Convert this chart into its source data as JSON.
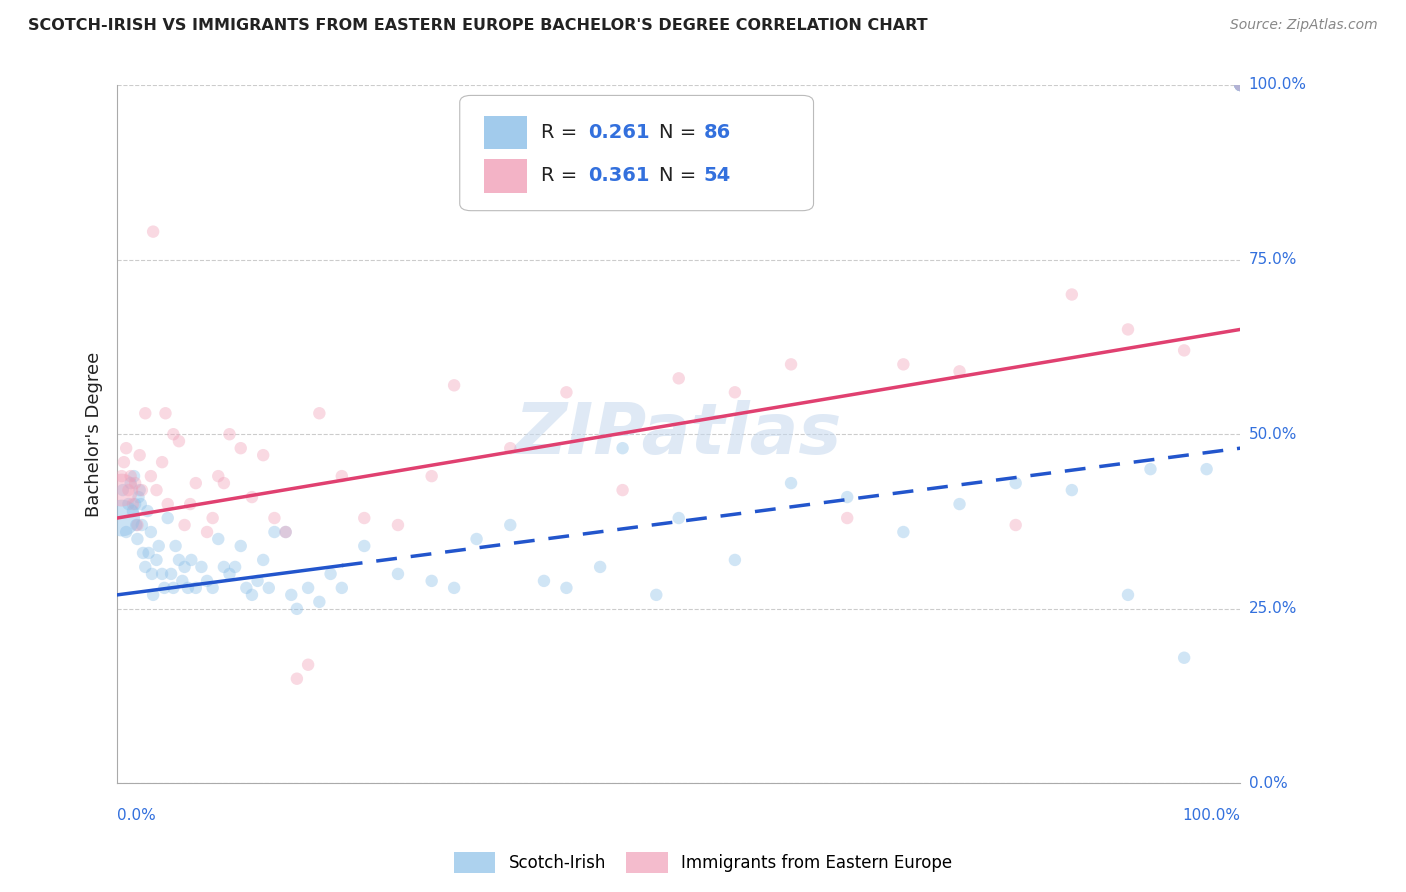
{
  "title": "SCOTCH-IRISH VS IMMIGRANTS FROM EASTERN EUROPE BACHELOR'S DEGREE CORRELATION CHART",
  "source": "Source: ZipAtlas.com",
  "ylabel": "Bachelor's Degree",
  "ytick_values": [
    0,
    25,
    50,
    75,
    100
  ],
  "ytick_labels": [
    "0.0%",
    "25.0%",
    "50.0%",
    "75.0%",
    "100.0%"
  ],
  "xlim": [
    0,
    100
  ],
  "ylim": [
    0,
    100
  ],
  "watermark": "ZIPatlas",
  "legend1_R": "0.261",
  "legend1_N": "86",
  "legend2_R": "0.361",
  "legend2_N": "54",
  "series1_label": "Scotch-Irish",
  "series2_label": "Immigrants from Eastern Europe",
  "series1_color": "#8BBFE8",
  "series2_color": "#F0A0B8",
  "series1_line_color": "#2255CC",
  "series2_line_color": "#E04070",
  "text_color": "#222222",
  "R_N_color": "#3370DD",
  "axis_label_color": "#3370DD",
  "grid_color": "#CCCCCC",
  "background_color": "#FFFFFF",
  "series1_x": [
    0.5,
    0.8,
    1.0,
    1.2,
    1.4,
    1.5,
    1.6,
    1.7,
    1.8,
    1.9,
    2.0,
    2.1,
    2.2,
    2.3,
    2.5,
    2.7,
    2.8,
    3.0,
    3.1,
    3.2,
    3.5,
    3.7,
    4.0,
    4.2,
    4.5,
    4.8,
    5.0,
    5.2,
    5.5,
    5.8,
    6.0,
    6.3,
    6.6,
    7.0,
    7.5,
    8.0,
    8.5,
    9.0,
    9.5,
    10.0,
    10.5,
    11.0,
    11.5,
    12.0,
    12.5,
    13.0,
    13.5,
    14.0,
    15.0,
    15.5,
    16.0,
    17.0,
    18.0,
    19.0,
    20.0,
    22.0,
    25.0,
    28.0,
    30.0,
    32.0,
    35.0,
    38.0,
    40.0,
    43.0,
    45.0,
    48.0,
    50.0,
    55.0,
    60.0,
    65.0,
    70.0,
    75.0,
    80.0,
    85.0,
    90.0,
    92.0,
    95.0,
    97.0,
    100.0,
    100.0,
    100.0,
    100.0,
    100.0,
    100.0,
    100.0,
    100.0
  ],
  "series1_y": [
    42,
    36,
    40,
    43,
    39,
    44,
    40,
    37,
    35,
    41,
    42,
    40,
    37,
    33,
    31,
    39,
    33,
    36,
    30,
    27,
    32,
    34,
    30,
    28,
    38,
    30,
    28,
    34,
    32,
    29,
    31,
    28,
    32,
    28,
    31,
    29,
    28,
    35,
    31,
    30,
    31,
    34,
    28,
    27,
    29,
    32,
    28,
    36,
    36,
    27,
    25,
    28,
    26,
    30,
    28,
    34,
    30,
    29,
    28,
    35,
    37,
    29,
    28,
    31,
    48,
    27,
    38,
    32,
    43,
    41,
    36,
    40,
    43,
    42,
    27,
    45,
    18,
    45,
    100,
    100,
    100,
    100,
    100,
    100,
    100,
    100
  ],
  "series2_x": [
    0.4,
    0.6,
    0.8,
    1.0,
    1.2,
    1.4,
    1.6,
    1.8,
    2.0,
    2.2,
    2.5,
    3.0,
    3.5,
    4.0,
    4.5,
    5.0,
    5.5,
    6.0,
    6.5,
    7.0,
    8.0,
    9.0,
    10.0,
    11.0,
    12.0,
    13.0,
    14.0,
    15.0,
    16.0,
    17.0,
    18.0,
    20.0,
    22.0,
    25.0,
    28.0,
    30.0,
    35.0,
    40.0,
    45.0,
    50.0,
    55.0,
    60.0,
    65.0,
    70.0,
    75.0,
    80.0,
    85.0,
    90.0,
    95.0,
    100.0,
    8.5,
    9.5,
    3.2,
    4.3
  ],
  "series2_y": [
    44,
    46,
    48,
    42,
    44,
    40,
    43,
    37,
    47,
    42,
    53,
    44,
    42,
    46,
    40,
    50,
    49,
    37,
    40,
    43,
    36,
    44,
    50,
    48,
    41,
    47,
    38,
    36,
    15,
    17,
    53,
    44,
    38,
    37,
    44,
    57,
    48,
    56,
    42,
    58,
    56,
    60,
    38,
    60,
    59,
    37,
    70,
    65,
    62,
    100,
    38,
    43,
    79,
    53
  ],
  "s1_trend_x0": 0,
  "s1_trend_x1": 100,
  "s1_trend_y0": 27,
  "s1_trend_y1": 48,
  "s1_trend_solid_end": 20,
  "s2_trend_x0": 0,
  "s2_trend_x1": 100,
  "s2_trend_y0": 38,
  "s2_trend_y1": 65,
  "marker_size": 80,
  "marker_alpha": 0.4,
  "large_marker_x": 0.4,
  "large_marker_y": 38,
  "large_marker_size": 700,
  "title_fontsize": 11.5,
  "source_fontsize": 10,
  "ylabel_fontsize": 13,
  "tick_label_fontsize": 11,
  "legend_fontsize": 14
}
